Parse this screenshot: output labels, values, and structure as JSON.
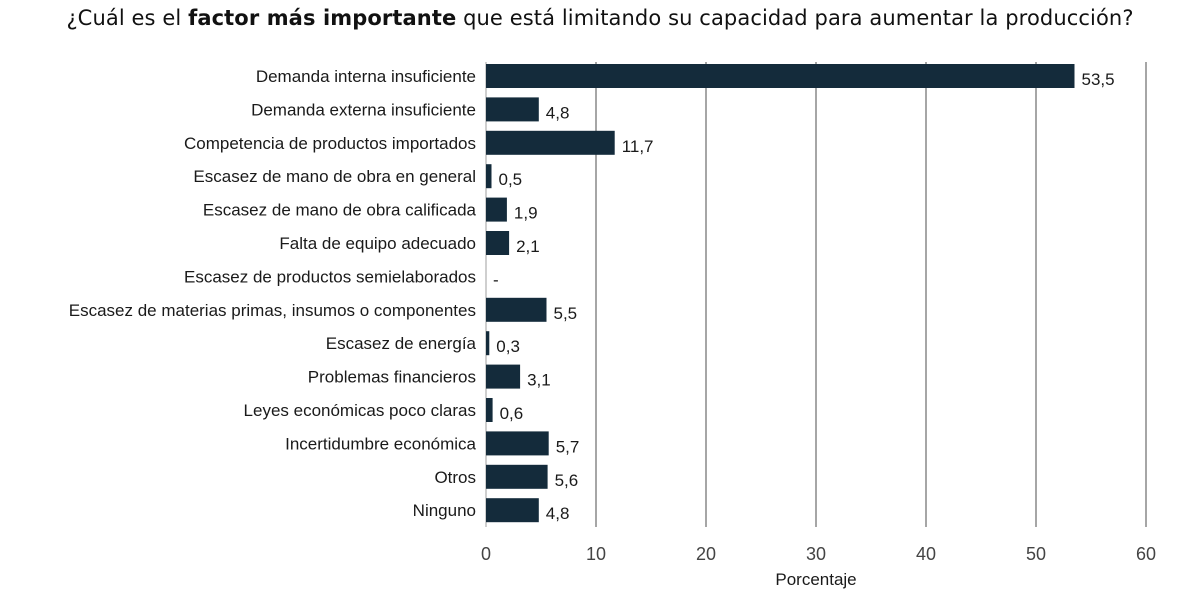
{
  "title": {
    "prefix": "¿Cuál es el ",
    "bold": "factor más importante",
    "suffix": " que está limitando su capacidad para aumentar la producción?"
  },
  "chart_data": {
    "type": "bar",
    "orientation": "horizontal",
    "categories": [
      "Demanda interna insuficiente",
      "Demanda externa insuficiente",
      "Competencia de productos importados",
      "Escasez de mano de obra en general",
      "Escasez de mano de obra calificada",
      "Falta de equipo adecuado",
      "Escasez de productos semielaborados",
      "Escasez de materias primas, insumos o componentes",
      "Escasez de energía",
      "Problemas financieros",
      "Leyes económicas poco claras",
      "Incertidumbre económica",
      "Otros",
      "Ninguno"
    ],
    "values": [
      53.5,
      4.8,
      11.7,
      0.5,
      1.9,
      2.1,
      0,
      5.5,
      0.3,
      3.1,
      0.6,
      5.7,
      5.6,
      4.8
    ],
    "value_labels": [
      "53,5",
      "4,8",
      "11,7",
      "0,5",
      "1,9",
      "2,1",
      "-",
      "5,5",
      "0,3",
      "3,1",
      "0,6",
      "5,7",
      "5,6",
      "4,8"
    ],
    "xlabel": "Porcentaje",
    "ylabel": "",
    "xlim": [
      0,
      60
    ],
    "xticks": [
      0,
      10,
      20,
      30,
      40,
      50,
      60
    ],
    "grid": "vertical",
    "legend": "none",
    "bar_color": "#142b3b",
    "grid_color": "#a6a6a6"
  }
}
